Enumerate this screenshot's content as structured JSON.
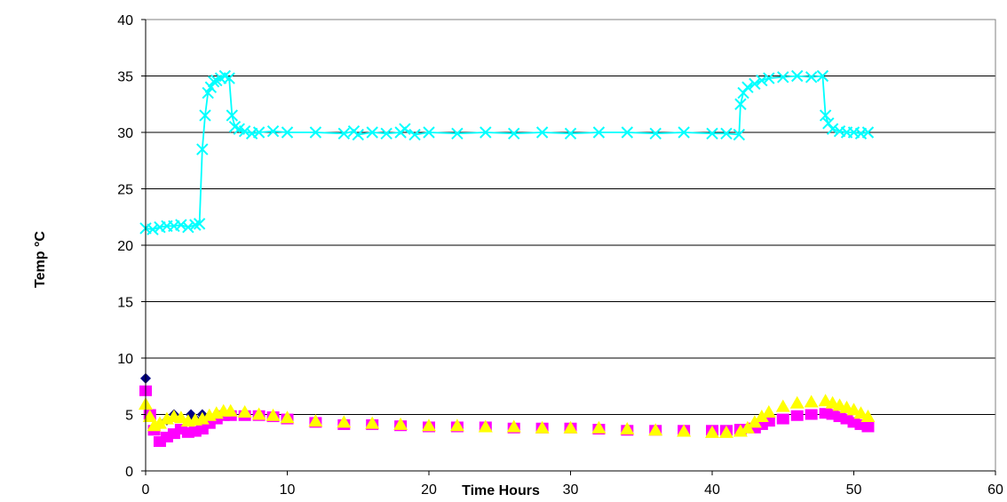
{
  "chart_data": {
    "type": "scatter",
    "title": "",
    "xlabel": "Time Hours",
    "ylabel": "Temp °C",
    "xlim": [
      0,
      60
    ],
    "ylim": [
      0,
      40
    ],
    "xticks": [
      0,
      10,
      20,
      30,
      40,
      50,
      60
    ],
    "yticks": [
      0,
      5,
      10,
      15,
      20,
      25,
      30,
      35,
      40
    ],
    "grid": "horizontal",
    "legend": "none",
    "series": [
      {
        "color": "#00FFFF",
        "marker": "x-mark",
        "line": true,
        "x": [
          0,
          0.5,
          1,
          1.5,
          2,
          2.5,
          3,
          3.5,
          3.8,
          4.0,
          4.2,
          4.4,
          4.6,
          4.8,
          5.0,
          5.3,
          5.6,
          5.9,
          6.1,
          6.3,
          6.6,
          7,
          7.5,
          8,
          9,
          10,
          12,
          14,
          14.7,
          15,
          16,
          17,
          18,
          18.3,
          19,
          20,
          22,
          24,
          26,
          28,
          30,
          32,
          34,
          36,
          38,
          40,
          41,
          41.9,
          42.0,
          42.2,
          42.5,
          43,
          43.5,
          44,
          45,
          46,
          47,
          47.8,
          48.0,
          48.2,
          48.5,
          49,
          49.5,
          50,
          50.5,
          51
        ],
        "y": [
          21.5,
          21.4,
          21.6,
          21.7,
          21.7,
          21.8,
          21.6,
          21.8,
          21.9,
          28.5,
          31.5,
          33.5,
          34.0,
          34.5,
          34.6,
          34.8,
          35.0,
          34.8,
          31.5,
          30.5,
          30.3,
          30.1,
          29.9,
          30.0,
          30.1,
          30.0,
          30.0,
          29.9,
          30.1,
          29.8,
          30.0,
          29.9,
          30.0,
          30.3,
          29.8,
          30.0,
          29.9,
          30.0,
          29.9,
          30.0,
          29.9,
          30.0,
          30.0,
          29.9,
          30.0,
          29.9,
          29.9,
          29.8,
          32.5,
          33.5,
          34.0,
          34.3,
          34.6,
          34.8,
          34.9,
          35.0,
          34.9,
          35.0,
          31.5,
          30.8,
          30.3,
          30.1,
          30.0,
          30.0,
          29.9,
          30.0
        ]
      },
      {
        "color": "#FF00FF",
        "marker": "square",
        "line": false,
        "x": [
          0,
          0.3,
          0.6,
          1,
          1.5,
          2,
          2.5,
          3,
          3.5,
          4,
          4.5,
          5,
          5.5,
          6,
          7,
          8,
          9,
          10,
          12,
          14,
          16,
          18,
          20,
          22,
          24,
          26,
          28,
          30,
          32,
          34,
          36,
          38,
          40,
          41,
          42,
          43,
          43.5,
          44,
          45,
          46,
          47,
          48,
          48.5,
          49,
          49.5,
          50,
          50.5,
          51
        ],
        "y": [
          7.1,
          5.0,
          3.6,
          2.6,
          3.0,
          3.3,
          3.7,
          3.4,
          3.5,
          3.7,
          4.2,
          4.6,
          4.9,
          4.9,
          4.9,
          4.9,
          4.8,
          4.6,
          4.3,
          4.1,
          4.1,
          4.0,
          3.9,
          3.9,
          3.9,
          3.8,
          3.8,
          3.8,
          3.7,
          3.6,
          3.6,
          3.6,
          3.6,
          3.6,
          3.7,
          3.8,
          4.1,
          4.4,
          4.6,
          4.9,
          5.0,
          5.1,
          5.0,
          4.8,
          4.6,
          4.3,
          4.1,
          3.9
        ]
      },
      {
        "color": "#FFFF00",
        "marker": "triangle",
        "line": false,
        "x": [
          0,
          0.3,
          0.6,
          1,
          1.5,
          2,
          2.5,
          3,
          3.5,
          4,
          4.5,
          5,
          5.5,
          6,
          7,
          8,
          9,
          10,
          12,
          14,
          16,
          18,
          20,
          22,
          24,
          26,
          28,
          30,
          32,
          34,
          36,
          38,
          40,
          41,
          42,
          42.5,
          43,
          43.5,
          44,
          45,
          46,
          47,
          48,
          48.5,
          49,
          49.5,
          50,
          50.5,
          51
        ],
        "y": [
          5.9,
          4.8,
          4.0,
          4.2,
          4.6,
          4.8,
          4.7,
          4.4,
          4.5,
          4.6,
          4.9,
          5.1,
          5.3,
          5.3,
          5.2,
          5.0,
          4.9,
          4.7,
          4.4,
          4.3,
          4.2,
          4.1,
          4.0,
          4.0,
          3.9,
          3.9,
          3.8,
          3.8,
          3.8,
          3.7,
          3.6,
          3.5,
          3.4,
          3.4,
          3.5,
          3.8,
          4.3,
          4.8,
          5.2,
          5.7,
          6.0,
          6.1,
          6.2,
          6.0,
          5.8,
          5.6,
          5.4,
          5.1,
          4.8
        ]
      },
      {
        "color": "#000080",
        "marker": "diamond",
        "line": false,
        "x": [
          0,
          1.5,
          2,
          3.2,
          3.5,
          4.0
        ],
        "y": [
          8.2,
          4.5,
          5.0,
          5.0,
          4.6,
          5.0
        ]
      }
    ]
  }
}
